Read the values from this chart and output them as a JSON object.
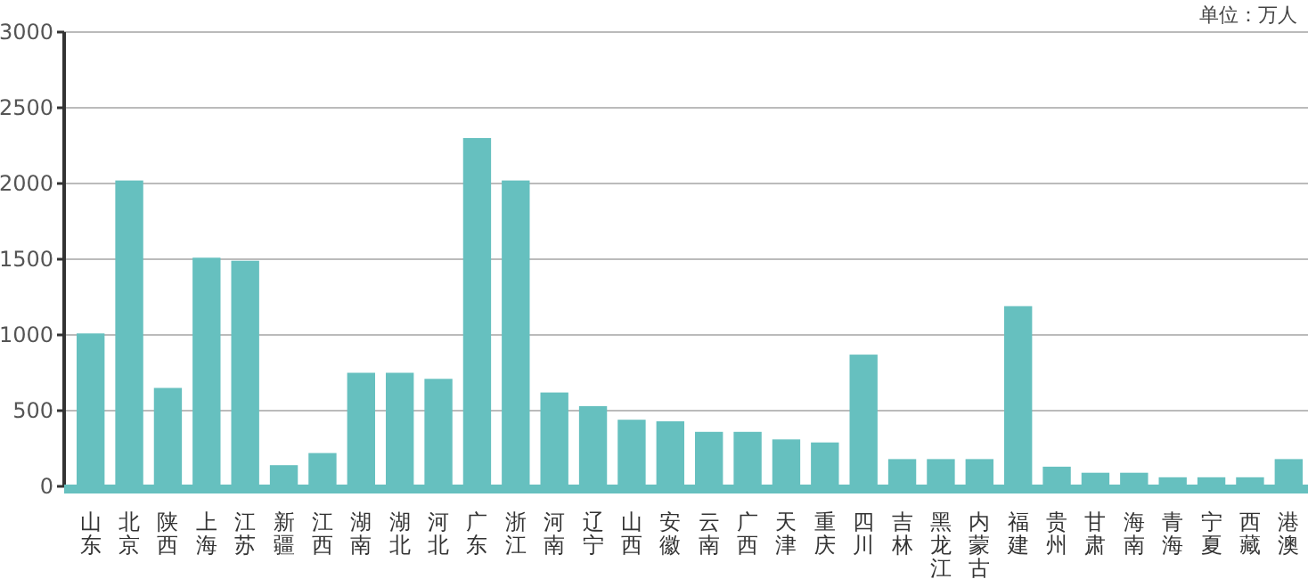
{
  "chart_data": {
    "type": "bar",
    "categories": [
      "山东",
      "北京",
      "陕西",
      "上海",
      "江苏",
      "新疆",
      "江西",
      "湖南",
      "湖北",
      "河北",
      "广东",
      "浙江",
      "河南",
      "辽宁",
      "山西",
      "安徽",
      "云南",
      "广西",
      "天津",
      "重庆",
      "四川",
      "吉林",
      "黑龙江",
      "内蒙古",
      "福建",
      "贵州",
      "甘肃",
      "海南",
      "青海",
      "宁夏",
      "西藏",
      "港澳"
    ],
    "values": [
      1010,
      2020,
      650,
      1510,
      1490,
      140,
      220,
      750,
      750,
      710,
      2300,
      2020,
      620,
      530,
      440,
      430,
      360,
      360,
      310,
      290,
      870,
      180,
      180,
      180,
      1190,
      130,
      90,
      90,
      60,
      60,
      60,
      180
    ],
    "color": "#66c0bf",
    "ylim": [
      0,
      3000
    ],
    "yticks": [
      0,
      500,
      1000,
      1500,
      2000,
      2500,
      3000
    ],
    "grid": "y",
    "annotations": [
      "单位：万人"
    ]
  }
}
